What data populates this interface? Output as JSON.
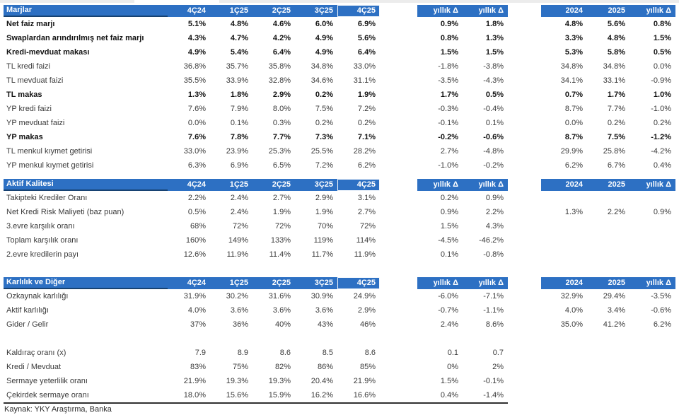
{
  "theme": {
    "header_bg": "#2d70c3",
    "header_underline": "#174272",
    "header_text": "#ffffff",
    "body_text": "#3a3a3a",
    "bold_text": "#131313"
  },
  "footer": {
    "source": "Kaynak: YKY Araştırma, Banka"
  },
  "sections": [
    {
      "title": "Marjlar",
      "quarter_headers": [
        "4Ç24",
        "1Ç25",
        "2Ç25",
        "3Ç25",
        "4Ç25"
      ],
      "delta_headers": [
        "yıllık Δ",
        "yıllık Δ"
      ],
      "year_headers": [
        "2024",
        "2025",
        "yıllık Δ"
      ],
      "rows": [
        {
          "label": "Net faiz marjı",
          "bold": true,
          "q": [
            "5.1%",
            "4.8%",
            "4.6%",
            "6.0%",
            "6.9%"
          ],
          "d": [
            "0.9%",
            "1.8%"
          ],
          "y": [
            "4.8%",
            "5.6%",
            "0.8%"
          ]
        },
        {
          "label": "Swaplardan arındırılmış net faiz marjı",
          "bold": true,
          "q": [
            "4.3%",
            "4.7%",
            "4.2%",
            "4.9%",
            "5.6%"
          ],
          "d": [
            "0.8%",
            "1.3%"
          ],
          "y": [
            "3.3%",
            "4.8%",
            "1.5%"
          ]
        },
        {
          "label": "Kredi-mevduat makası",
          "bold": true,
          "q": [
            "4.9%",
            "5.4%",
            "6.4%",
            "4.9%",
            "6.4%"
          ],
          "d": [
            "1.5%",
            "1.5%"
          ],
          "y": [
            "5.3%",
            "5.8%",
            "0.5%"
          ]
        },
        {
          "label": "TL kredi faizi",
          "bold": false,
          "q": [
            "36.8%",
            "35.7%",
            "35.8%",
            "34.8%",
            "33.0%"
          ],
          "d": [
            "-1.8%",
            "-3.8%"
          ],
          "y": [
            "34.8%",
            "34.8%",
            "0.0%"
          ]
        },
        {
          "label": "TL mevduat faizi",
          "bold": false,
          "q": [
            "35.5%",
            "33.9%",
            "32.8%",
            "34.6%",
            "31.1%"
          ],
          "d": [
            "-3.5%",
            "-4.3%"
          ],
          "y": [
            "34.1%",
            "33.1%",
            "-0.9%"
          ]
        },
        {
          "label": "TL makas",
          "bold": true,
          "q": [
            "1.3%",
            "1.8%",
            "2.9%",
            "0.2%",
            "1.9%"
          ],
          "d": [
            "1.7%",
            "0.5%"
          ],
          "y": [
            "0.7%",
            "1.7%",
            "1.0%"
          ]
        },
        {
          "label": "YP kredi faizi",
          "bold": false,
          "q": [
            "7.6%",
            "7.9%",
            "8.0%",
            "7.5%",
            "7.2%"
          ],
          "d": [
            "-0.3%",
            "-0.4%"
          ],
          "y": [
            "8.7%",
            "7.7%",
            "-1.0%"
          ]
        },
        {
          "label": "YP mevduat faizi",
          "bold": false,
          "q": [
            "0.0%",
            "0.1%",
            "0.3%",
            "0.2%",
            "0.2%"
          ],
          "d": [
            "-0.1%",
            "0.1%"
          ],
          "y": [
            "0.0%",
            "0.2%",
            "0.2%"
          ]
        },
        {
          "label": "YP makas",
          "bold": true,
          "q": [
            "7.6%",
            "7.8%",
            "7.7%",
            "7.3%",
            "7.1%"
          ],
          "d": [
            "-0.2%",
            "-0.6%"
          ],
          "y": [
            "8.7%",
            "7.5%",
            "-1.2%"
          ]
        },
        {
          "label": "TL menkul kıymet getirisi",
          "bold": false,
          "q": [
            "33.0%",
            "23.9%",
            "25.3%",
            "25.5%",
            "28.2%"
          ],
          "d": [
            "2.7%",
            "-4.8%"
          ],
          "y": [
            "29.9%",
            "25.8%",
            "-4.2%"
          ]
        },
        {
          "label": "YP menkul kıymet getirisi",
          "bold": false,
          "q": [
            "6.3%",
            "6.9%",
            "6.5%",
            "7.2%",
            "6.2%"
          ],
          "d": [
            "-1.0%",
            "-0.2%"
          ],
          "y": [
            "6.2%",
            "6.7%",
            "0.4%"
          ]
        }
      ]
    },
    {
      "title": "Aktif Kalitesi",
      "quarter_headers": [
        "4Ç24",
        "1Ç25",
        "2Ç25",
        "3Ç25",
        "4Ç25"
      ],
      "delta_headers": [
        "yıllık Δ",
        "yıllık Δ"
      ],
      "year_headers": [
        "2024",
        "2025",
        "yıllık Δ"
      ],
      "rows": [
        {
          "label": "Takipteki Krediler Oranı",
          "bold": false,
          "q": [
            "2.2%",
            "2.4%",
            "2.7%",
            "2.9%",
            "3.1%"
          ],
          "d": [
            "0.2%",
            "0.9%"
          ],
          "y": [
            "",
            "",
            ""
          ]
        },
        {
          "label": "Net Kredi Risk Maliyeti (baz puan)",
          "bold": false,
          "q": [
            "0.5%",
            "2.4%",
            "1.9%",
            "1.9%",
            "2.7%"
          ],
          "d": [
            "0.9%",
            "2.2%"
          ],
          "y": [
            "1.3%",
            "2.2%",
            "0.9%"
          ]
        },
        {
          "label": "3.evre karşılık oranı",
          "bold": false,
          "q": [
            "68%",
            "72%",
            "72%",
            "70%",
            "72%"
          ],
          "d": [
            "1.5%",
            "4.3%"
          ],
          "y": [
            "",
            "",
            ""
          ]
        },
        {
          "label": "Toplam karşılık oranı",
          "bold": false,
          "q": [
            "160%",
            "149%",
            "133%",
            "119%",
            "114%"
          ],
          "d": [
            "-4.5%",
            "-46.2%"
          ],
          "y": [
            "",
            "",
            ""
          ]
        },
        {
          "label": "2.evre kredilerin payı",
          "bold": false,
          "q": [
            "12.6%",
            "11.9%",
            "11.4%",
            "11.7%",
            "11.9%"
          ],
          "d": [
            "0.1%",
            "-0.8%"
          ],
          "y": [
            "",
            "",
            ""
          ]
        }
      ]
    },
    {
      "title": "Karlılık ve Diğer",
      "quarter_headers": [
        "4Ç24",
        "1Ç25",
        "2Ç25",
        "3Ç25",
        "4Ç25"
      ],
      "delta_headers": [
        "yıllık Δ",
        "yıllık Δ"
      ],
      "year_headers": [
        "2024",
        "2025",
        "yıllık Δ"
      ],
      "rows": [
        {
          "label": "Özkaynak karlılığı",
          "bold": false,
          "q": [
            "31.9%",
            "30.2%",
            "31.6%",
            "30.9%",
            "24.9%"
          ],
          "d": [
            "-6.0%",
            "-7.1%"
          ],
          "y": [
            "32.9%",
            "29.4%",
            "-3.5%"
          ]
        },
        {
          "label": "Aktif karlılığı",
          "bold": false,
          "q": [
            "4.0%",
            "3.6%",
            "3.6%",
            "3.6%",
            "2.9%"
          ],
          "d": [
            "-0.7%",
            "-1.1%"
          ],
          "y": [
            "4.0%",
            "3.4%",
            "-0.6%"
          ]
        },
        {
          "label": "Gider / Gelir",
          "bold": false,
          "q": [
            "37%",
            "36%",
            "40%",
            "43%",
            "46%"
          ],
          "d": [
            "2.4%",
            "8.6%"
          ],
          "y": [
            "35.0%",
            "41.2%",
            "6.2%"
          ]
        },
        {
          "spacer": true
        },
        {
          "label": "Kaldıraç oranı (x)",
          "bold": false,
          "q": [
            "7.9",
            "8.9",
            "8.6",
            "8.5",
            "8.6"
          ],
          "d": [
            "0.1",
            "0.7"
          ],
          "y": [
            "",
            "",
            ""
          ]
        },
        {
          "label": "Kredi / Mevduat",
          "bold": false,
          "q": [
            "83%",
            "75%",
            "82%",
            "86%",
            "85%"
          ],
          "d": [
            "0%",
            "2%"
          ],
          "y": [
            "",
            "",
            ""
          ]
        },
        {
          "label": "Sermaye yeterlilik oranı",
          "bold": false,
          "q": [
            "21.9%",
            "19.3%",
            "19.3%",
            "20.4%",
            "21.9%"
          ],
          "d": [
            "1.5%",
            "-0.1%"
          ],
          "y": [
            "",
            "",
            ""
          ]
        },
        {
          "label": "Çekirdek sermaye oranı",
          "bold": false,
          "q": [
            "18.0%",
            "15.6%",
            "15.9%",
            "16.2%",
            "16.6%"
          ],
          "d": [
            "0.4%",
            "-1.4%"
          ],
          "y": [
            "",
            "",
            ""
          ]
        }
      ]
    }
  ]
}
